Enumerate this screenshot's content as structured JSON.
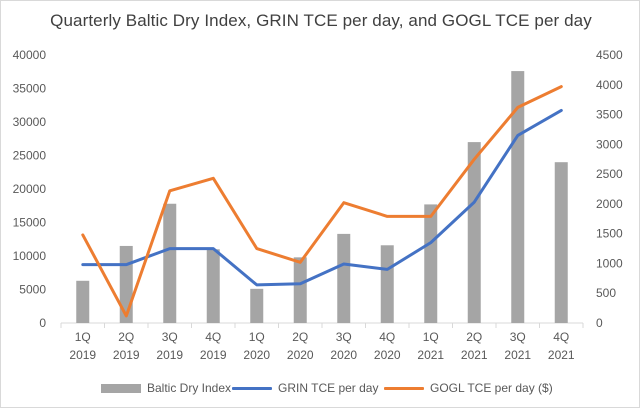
{
  "chart_data": {
    "type": "combo-bar-line",
    "title": "Quarterly Baltic Dry Index, GRIN TCE per day, and GOGL TCE per day",
    "categories": [
      [
        "1Q",
        "2019"
      ],
      [
        "2Q",
        "2019"
      ],
      [
        "3Q",
        "2019"
      ],
      [
        "4Q",
        "2019"
      ],
      [
        "1Q",
        "2020"
      ],
      [
        "2Q",
        "2020"
      ],
      [
        "3Q",
        "2020"
      ],
      [
        "4Q",
        "2020"
      ],
      [
        "1Q",
        "2021"
      ],
      [
        "2Q",
        "2021"
      ],
      [
        "3Q",
        "2021"
      ],
      [
        "4Q",
        "2021"
      ]
    ],
    "left_axis": {
      "min": 0,
      "max": 40000,
      "ticks": [
        "0",
        "5000",
        "10000",
        "15000",
        "20000",
        "25000",
        "30000",
        "35000",
        "40000"
      ]
    },
    "right_axis": {
      "min": 0,
      "max": 4500,
      "ticks": [
        "0",
        "500",
        "1000",
        "1500",
        "2000",
        "2500",
        "3000",
        "3500",
        "4000",
        "4500"
      ]
    },
    "series": [
      {
        "name": "Baltic Dry Index",
        "kind": "bar",
        "axis": "left",
        "color": "#a5a5a5",
        "values": [
          6300,
          11500,
          17800,
          11000,
          5100,
          9800,
          13300,
          11600,
          17700,
          27000,
          37600,
          24000
        ]
      },
      {
        "name": "GRIN TCE per day",
        "kind": "line",
        "axis": "right",
        "color": "#4472c4",
        "values": [
          980,
          980,
          1250,
          1250,
          640,
          660,
          990,
          900,
          1350,
          2030,
          3150,
          3570
        ]
      },
      {
        "name": "GOGL TCE per day ($)",
        "kind": "line",
        "axis": "right",
        "color": "#ed7d31",
        "values": [
          1480,
          120,
          2220,
          2430,
          1250,
          1020,
          2020,
          1790,
          1790,
          2750,
          3620,
          3970
        ]
      }
    ],
    "legend_position": "bottom",
    "grid": false
  }
}
